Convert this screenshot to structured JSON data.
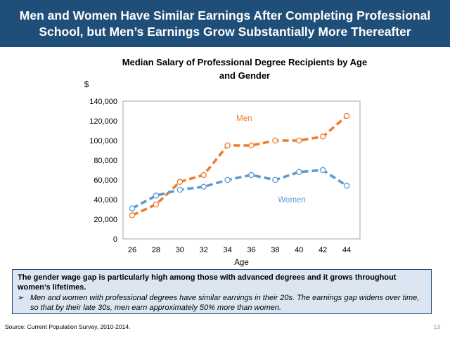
{
  "banner": {
    "title": "Men and Women Have Similar Earnings After Completing Professional School, but Men’s Earnings Grow Substantially More Thereafter"
  },
  "chart_data": {
    "type": "line",
    "title": "Median Salary of Professional Degree Recipients by Age and Gender",
    "title_lines": [
      "Median Salary of Professional Degree Recipients by Age",
      "and Gender"
    ],
    "xlabel": "Age",
    "ylabel": "$",
    "x": [
      26,
      28,
      30,
      32,
      34,
      36,
      38,
      40,
      42,
      44
    ],
    "ylim": [
      0,
      140000
    ],
    "yticks": [
      0,
      20000,
      40000,
      60000,
      80000,
      100000,
      120000,
      140000
    ],
    "ytick_labels": [
      "0",
      "20,000",
      "40,000",
      "60,000",
      "80,000",
      "100,000",
      "120,000",
      "140,000"
    ],
    "xtick_labels": [
      "26",
      "28",
      "30",
      "32",
      "34",
      "36",
      "38",
      "40",
      "42",
      "44"
    ],
    "grid": false,
    "legend": "inline labels",
    "series": [
      {
        "name": "Men",
        "color": "#ed7d31",
        "values": [
          24000,
          35000,
          58000,
          65000,
          95000,
          95000,
          100000,
          100000,
          104000,
          125000
        ]
      },
      {
        "name": "Women",
        "color": "#5b9bd5",
        "values": [
          31000,
          44000,
          50000,
          53000,
          60000,
          65000,
          60000,
          68000,
          70000,
          54000
        ]
      }
    ]
  },
  "callout": {
    "heading": "The gender wage gap is particularly high among those with advanced degrees and it grows throughout women’s lifetimes.",
    "bullet_symbol": "➢",
    "bullet": "Men and women with professional degrees have similar earnings in their 20s. The earnings gap widens over time, so that by their late 30s, men earn approximately 50% more than women."
  },
  "footer": {
    "source": "Source: Current Population Survey, 2010-2014.",
    "page_number": "13"
  }
}
